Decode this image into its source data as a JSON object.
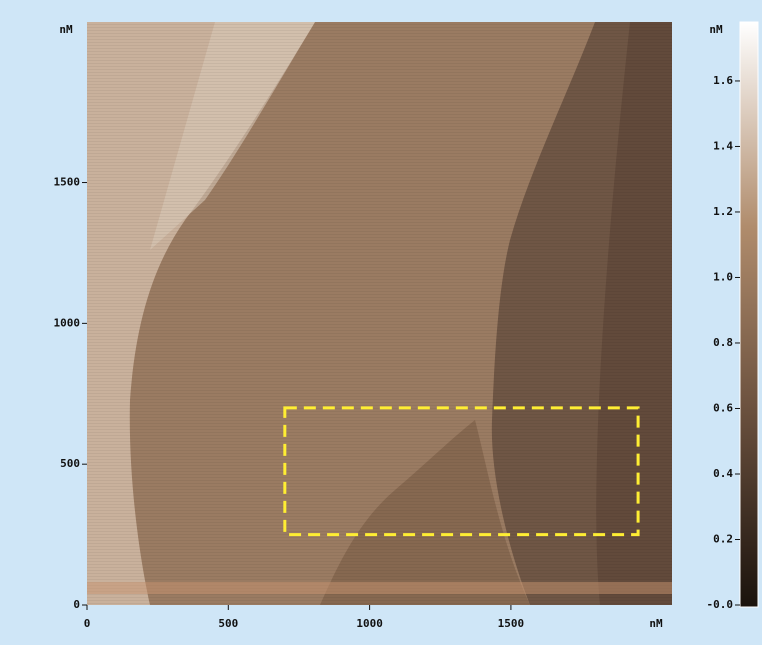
{
  "chart_data": {
    "type": "image",
    "x_unit": "nM",
    "y_unit": "nM",
    "colorbar_unit": "nM",
    "xlim": [
      0,
      2070
    ],
    "ylim": [
      0,
      2070
    ],
    "xticks": [
      0,
      500,
      1000,
      1500
    ],
    "yticks": [
      0,
      500,
      1000,
      1500
    ],
    "clim": [
      0,
      1.78
    ],
    "cticks": [
      {
        "value": 0,
        "label": "-0.0"
      },
      {
        "value": 0.2,
        "label": "0.2"
      },
      {
        "value": 0.4,
        "label": "0.4"
      },
      {
        "value": 0.6,
        "label": "0.6"
      },
      {
        "value": 0.8,
        "label": "0.8"
      },
      {
        "value": 1.0,
        "label": "1.0"
      },
      {
        "value": 1.2,
        "label": "1.2"
      },
      {
        "value": 1.4,
        "label": "1.4"
      },
      {
        "value": 1.6,
        "label": "1.6"
      }
    ],
    "region": {
      "x": [
        700,
        1950
      ],
      "y": [
        250,
        700
      ],
      "color": "#ffee33"
    }
  }
}
